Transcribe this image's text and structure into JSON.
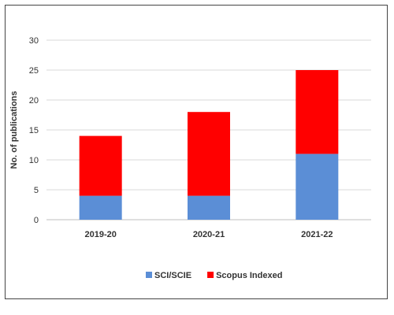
{
  "chart_data": {
    "type": "bar",
    "stacked": true,
    "categories": [
      "2019-20",
      "2020-21",
      "2021-22"
    ],
    "series": [
      {
        "name": "SCI/SCIE",
        "values": [
          4,
          4,
          11
        ],
        "color": "#5B8ED6"
      },
      {
        "name": "Scopus Indexed",
        "values": [
          10,
          14,
          14
        ],
        "color": "#FF0000"
      }
    ],
    "ylabel": "No. of publications",
    "xlabel": "",
    "title": "",
    "ylim": [
      0,
      30
    ],
    "yticks": [
      0,
      5,
      10,
      15,
      20,
      25,
      30
    ],
    "grid": true,
    "legend": "bottom"
  }
}
